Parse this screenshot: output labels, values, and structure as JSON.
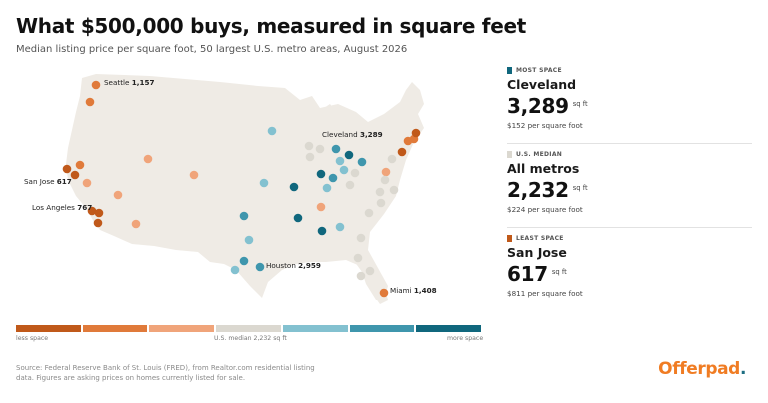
{
  "title": "What $500,000 buys, measured in square feet",
  "subtitle": "Median listing price per square foot, 50 largest U.S. metro areas, August 2026",
  "colors": {
    "land": "#efebe5",
    "scale": [
      "#c0591a",
      "#e07a3a",
      "#f0a47a",
      "#dbd8d0",
      "#83c1d0",
      "#3f96ad",
      "#10677d"
    ]
  },
  "legend": {
    "less": "less space",
    "median": "U.S. median 2,232 sq ft",
    "more": "more space"
  },
  "labels": [
    {
      "city": "Seattle",
      "value": "1,157"
    },
    {
      "city": "San Jose",
      "value": "617"
    },
    {
      "city": "Los Angeles",
      "value": "767"
    },
    {
      "city": "Cleveland",
      "value": "3,289"
    },
    {
      "city": "Houston",
      "value": "2,959"
    },
    {
      "city": "Miami",
      "value": "1,408"
    }
  ],
  "panel": {
    "most": {
      "tag": "MOST SPACE",
      "city": "Cleveland",
      "sqft": "3,289",
      "unit": "sq ft",
      "pps": "$152 per square foot",
      "color": "#10677d"
    },
    "median": {
      "tag": "U.S. MEDIAN",
      "city": "All metros",
      "sqft": "2,232",
      "unit": "sq ft",
      "pps": "$224 per square foot",
      "color": "#dbd8d0"
    },
    "least": {
      "tag": "LEAST SPACE",
      "city": "San Jose",
      "sqft": "617",
      "unit": "sq ft",
      "pps": "$811 per square foot",
      "color": "#c0591a"
    }
  },
  "source": "Source: Federal Reserve Bank of St. Louis (FRED), from Realtor.com residential listing data. Figures are asking prices on homes currently listed for sale.",
  "brand": {
    "name": "Offerpad",
    "dot": "."
  }
}
